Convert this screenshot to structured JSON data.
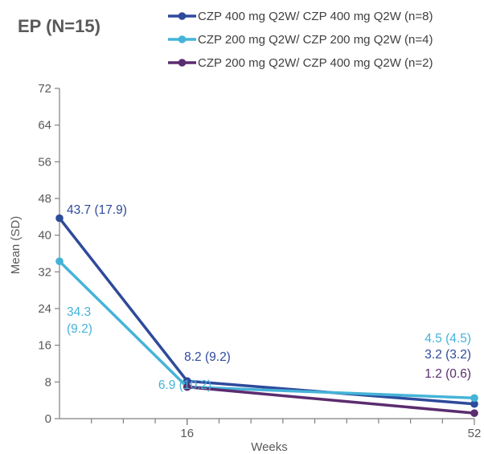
{
  "chart_data": {
    "type": "line",
    "title": "EP (N=15)",
    "xlabel": "Weeks",
    "ylabel": "Mean (SD)",
    "ylim": [
      0,
      72
    ],
    "yticks": [
      "0",
      "8",
      "16",
      "24",
      "32",
      "40",
      "48",
      "56",
      "64",
      "72"
    ],
    "xlim": [
      0,
      52
    ],
    "xticks": [
      "16",
      "52"
    ],
    "x": [
      0,
      16,
      52
    ],
    "legend_position": "top",
    "series": [
      {
        "name": "CZP 400 mg Q2W/ CZP 400 mg Q2W (n=8)",
        "color": "#2e4a9b",
        "values": [
          43.7,
          8.2,
          3.2
        ],
        "labels": [
          "43.7 (17.9)",
          "8.2 (9.2)",
          "3.2 (3.2)"
        ]
      },
      {
        "name": "CZP 200 mg Q2W/ CZP 200 mg Q2W (n=4)",
        "color": "#45b3d8",
        "values": [
          34.3,
          6.9,
          4.5
        ],
        "labels": [
          "34.3 (9.2)",
          "6.9 (10.2)",
          "4.5 (4.5)"
        ]
      },
      {
        "name": "CZP 200 mg Q2W/ CZP 400 mg Q2W (n=2)",
        "color": "#5b2c6f",
        "values": [
          null,
          6.9,
          1.2
        ],
        "labels": [
          "",
          "",
          "1.2 (0.6)"
        ]
      }
    ]
  }
}
